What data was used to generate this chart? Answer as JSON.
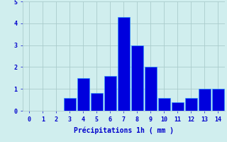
{
  "categories": [
    0,
    1,
    2,
    3,
    4,
    5,
    6,
    7,
    8,
    9,
    10,
    11,
    12,
    13,
    14
  ],
  "values": [
    0,
    0,
    0,
    0.6,
    1.5,
    0.8,
    1.6,
    4.3,
    3.0,
    2.0,
    0.6,
    0.4,
    0.6,
    1.0,
    1.0
  ],
  "bar_color": "#0000DD",
  "bar_edge_color": "#3399FF",
  "background_color": "#D0EEEE",
  "grid_color": "#AACCCC",
  "xlabel": "Précipitations 1h ( mm )",
  "xlabel_color": "#0000CC",
  "tick_color": "#0000CC",
  "ylim": [
    0,
    5
  ],
  "yticks": [
    0,
    1,
    2,
    3,
    4,
    5
  ],
  "xlim": [
    -0.5,
    14.5
  ],
  "figsize": [
    3.2,
    2.0
  ],
  "dpi": 100
}
